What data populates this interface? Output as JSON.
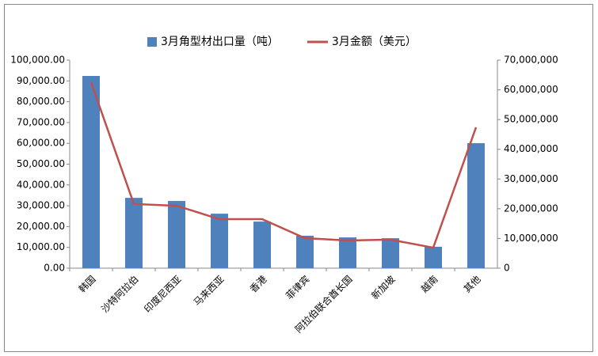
{
  "chart_data": {
    "type": "bar-line",
    "categories": [
      "韩国",
      "沙特阿拉伯",
      "印度尼西亚",
      "马来西亚",
      "香港",
      "菲律宾",
      "阿拉伯联合酋长国",
      "新加坡",
      "越南",
      "其他"
    ],
    "series": [
      {
        "name": "3月角型材出口量（吨）",
        "type": "bar",
        "color": "#4f81bd",
        "values": [
          92400,
          33800,
          32300,
          26200,
          22400,
          15600,
          14800,
          14400,
          10300,
          60100
        ]
      },
      {
        "name": "3月金额（美元）",
        "type": "line",
        "axis": "y2",
        "color": "#c0504d",
        "values": [
          62500000,
          21600000,
          21000000,
          16500000,
          16500000,
          10100000,
          9300000,
          9600000,
          6900000,
          47400000
        ]
      }
    ],
    "ylim": [
      0,
      100000
    ],
    "yticks": [
      {
        "value": 0,
        "label": "0.00"
      },
      {
        "value": 10000,
        "label": "10,000.00"
      },
      {
        "value": 20000,
        "label": "20,000.00"
      },
      {
        "value": 30000,
        "label": "30,000.00"
      },
      {
        "value": 40000,
        "label": "40,000.00"
      },
      {
        "value": 50000,
        "label": "50,000.00"
      },
      {
        "value": 60000,
        "label": "60,000.00"
      },
      {
        "value": 70000,
        "label": "70,000.00"
      },
      {
        "value": 80000,
        "label": "80,000.00"
      },
      {
        "value": 90000,
        "label": "90,000.00"
      },
      {
        "value": 100000,
        "label": "100,000.00"
      }
    ],
    "y2lim": [
      0,
      70000000
    ],
    "y2ticks": [
      0,
      {
        "value": 10000000,
        "label": "10,000,000"
      },
      {
        "value": 20000000,
        "label": "20,000,000"
      },
      {
        "value": 30000000,
        "label": "30,000,000"
      },
      {
        "value": 40000000,
        "label": "40,000,000"
      },
      {
        "value": 50000000,
        "label": "50,000,000"
      },
      {
        "value": 60000000,
        "label": "60,000,000"
      },
      {
        "value": 70000000,
        "label": "70,000,000"
      }
    ],
    "legend": "top",
    "grid": false
  }
}
